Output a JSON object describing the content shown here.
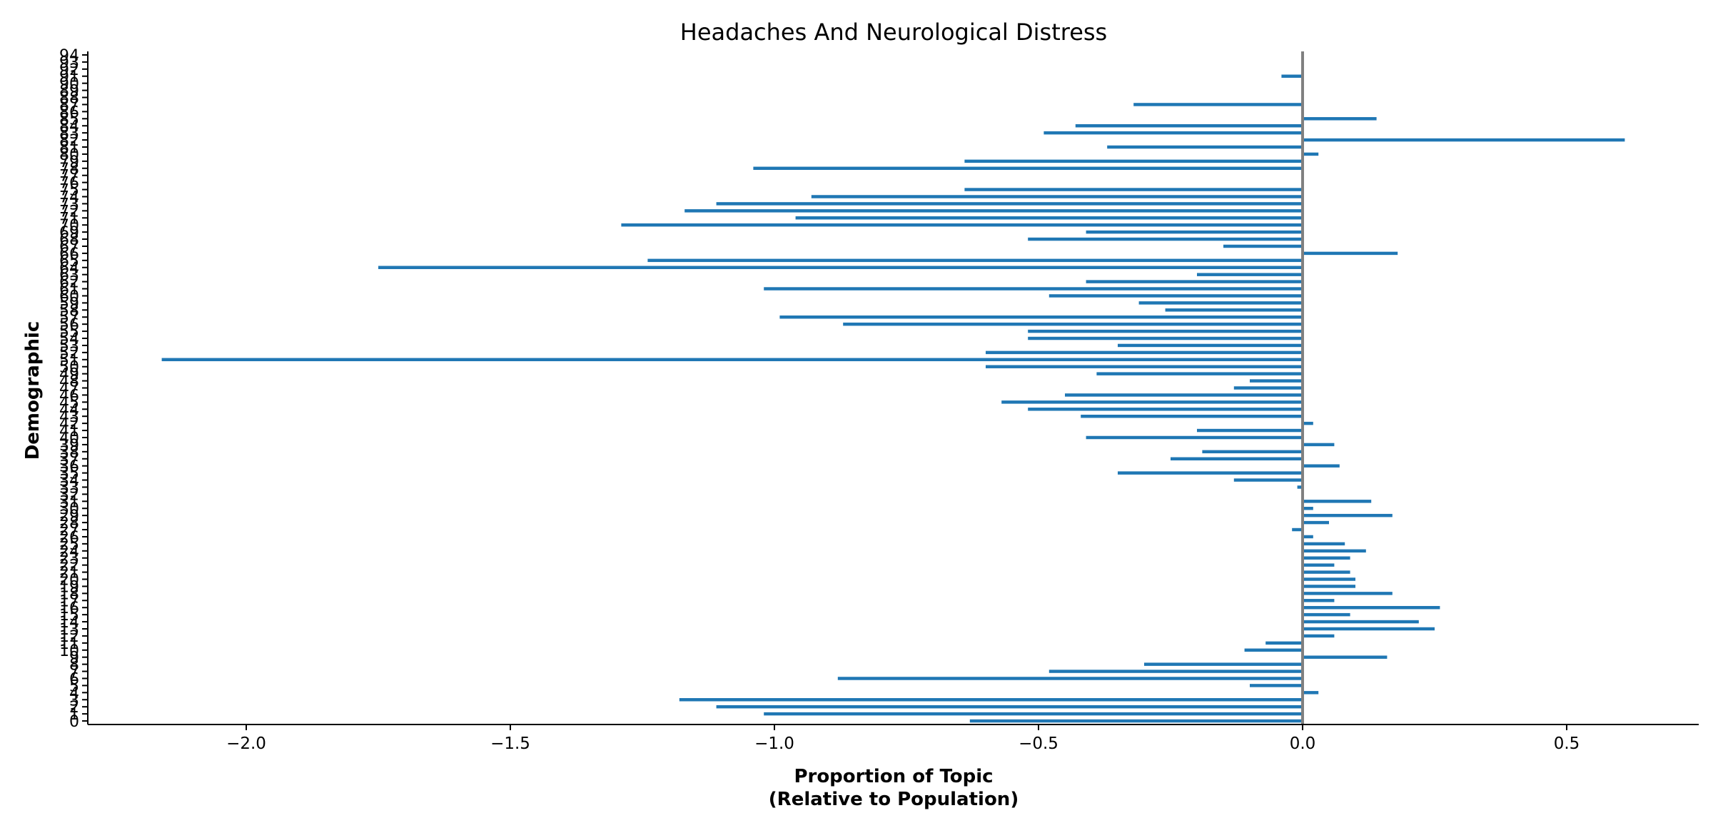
{
  "chart_data": {
    "type": "bar",
    "orientation": "horizontal",
    "title": "Headaches And Neurological Distress",
    "xlabel_lines": [
      "Proportion of Topic",
      "(Relative to Population)"
    ],
    "ylabel": "Demographic",
    "xlim": [
      -2.3,
      0.75
    ],
    "ylim": [
      -0.5,
      94.5
    ],
    "xticks": [
      -2.0,
      -1.5,
      -1.0,
      -0.5,
      0.0,
      0.5
    ],
    "xtick_labels": [
      "−2.0",
      "−1.5",
      "−1.0",
      "−0.5",
      "0.0",
      "0.5"
    ],
    "grid": false,
    "bar_color": "#1f77b4",
    "zero_line_color": "#808080",
    "categories": [
      "0",
      "1",
      "2",
      "3",
      "4",
      "5",
      "6",
      "7",
      "8",
      "9",
      "10",
      "11",
      "12",
      "13",
      "14",
      "15",
      "16",
      "17",
      "18",
      "19",
      "20",
      "21",
      "22",
      "23",
      "24",
      "25",
      "26",
      "27",
      "28",
      "29",
      "30",
      "31",
      "32",
      "33",
      "34",
      "35",
      "36",
      "37",
      "38",
      "39",
      "40",
      "41",
      "42",
      "43",
      "44",
      "45",
      "46",
      "47",
      "48",
      "49",
      "50",
      "51",
      "52",
      "53",
      "54",
      "55",
      "56",
      "57",
      "58",
      "59",
      "60",
      "61",
      "62",
      "63",
      "64",
      "65",
      "66",
      "67",
      "68",
      "69",
      "70",
      "71",
      "72",
      "73",
      "74",
      "75",
      "76",
      "77",
      "78",
      "79",
      "80",
      "81",
      "82",
      "83",
      "84",
      "85",
      "86",
      "87",
      "88",
      "89",
      "90",
      "91",
      "92",
      "93",
      "94"
    ],
    "values": [
      -0.63,
      -1.02,
      -1.11,
      -1.18,
      0.03,
      -0.1,
      -0.88,
      -0.48,
      -0.3,
      0.16,
      -0.11,
      -0.07,
      0.06,
      0.25,
      0.22,
      0.09,
      0.26,
      0.06,
      0.17,
      0.1,
      0.1,
      0.09,
      0.06,
      0.09,
      0.12,
      0.08,
      0.02,
      -0.02,
      0.05,
      0.17,
      0.02,
      0.13,
      0.0,
      -0.01,
      -0.13,
      -0.35,
      0.07,
      -0.25,
      -0.19,
      0.06,
      -0.41,
      -0.2,
      0.02,
      -0.42,
      -0.52,
      -0.57,
      -0.45,
      -0.13,
      -0.1,
      -0.39,
      -0.6,
      -2.16,
      -0.6,
      -0.35,
      -0.52,
      -0.52,
      -0.87,
      -0.99,
      -0.26,
      -0.31,
      -0.48,
      -1.02,
      -0.41,
      -0.2,
      -1.75,
      -1.24,
      0.18,
      -0.15,
      -0.52,
      -0.41,
      -1.29,
      -0.96,
      -1.17,
      -1.11,
      -0.93,
      -0.64,
      0.0,
      0.0,
      -1.04,
      -0.64,
      0.03,
      -0.37,
      0.61,
      -0.49,
      -0.43,
      0.14,
      0.0,
      -0.32,
      0.0,
      0.0,
      0.0,
      -0.04,
      0.0,
      0.0,
      0.0
    ]
  }
}
